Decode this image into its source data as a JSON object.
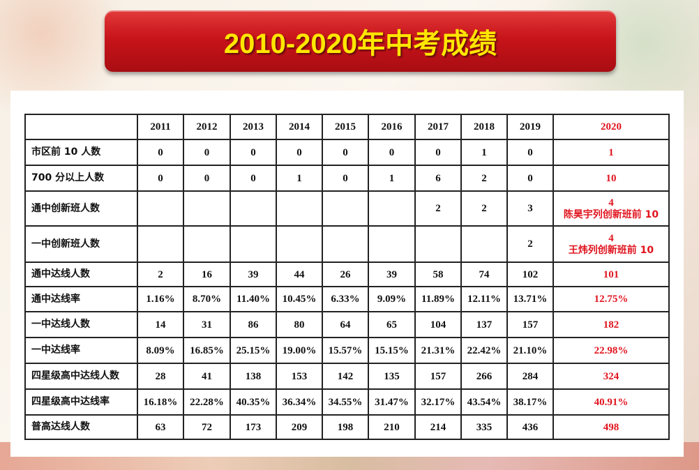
{
  "title": "2010-2020年中考成绩",
  "colors": {
    "banner": "#c8141a",
    "title_text": "#ffe600",
    "highlight": "#e0141e"
  },
  "table": {
    "headers": [
      "",
      "2011",
      "2012",
      "2013",
      "2014",
      "2015",
      "2016",
      "2017",
      "2018",
      "2019",
      "2020"
    ],
    "rows": [
      {
        "label": "市区前 10 人数",
        "values": [
          "0",
          "0",
          "0",
          "0",
          "0",
          "0",
          "0",
          "1",
          "0",
          "1"
        ]
      },
      {
        "label": "700 分以上人数",
        "values": [
          "0",
          "0",
          "0",
          "1",
          "0",
          "1",
          "6",
          "2",
          "0",
          "10"
        ]
      },
      {
        "label": "通中创新班人数",
        "values": [
          "",
          "",
          "",
          "",
          "",
          "",
          "2",
          "2",
          "3",
          "4"
        ],
        "note": "陈昊宇列创新班前 10"
      },
      {
        "label": "一中创新班人数",
        "values": [
          "",
          "",
          "",
          "",
          "",
          "",
          "",
          "",
          "2",
          "4"
        ],
        "note": "王炜列创新班前 10"
      },
      {
        "label": "通中达线人数",
        "values": [
          "2",
          "16",
          "39",
          "44",
          "26",
          "39",
          "58",
          "74",
          "102",
          "101"
        ]
      },
      {
        "label": "通中达线率",
        "values": [
          "1.16%",
          "8.70%",
          "11.40%",
          "10.45%",
          "6.33%",
          "9.09%",
          "11.89%",
          "12.11%",
          "13.71%",
          "12.75%"
        ]
      },
      {
        "label": "一中达线人数",
        "values": [
          "14",
          "31",
          "86",
          "80",
          "64",
          "65",
          "104",
          "137",
          "157",
          "182"
        ]
      },
      {
        "label": "一中达线率",
        "values": [
          "8.09%",
          "16.85%",
          "25.15%",
          "19.00%",
          "15.57%",
          "15.15%",
          "21.31%",
          "22.42%",
          "21.10%",
          "22.98%"
        ]
      },
      {
        "label": "四星级高中达线人数",
        "values": [
          "28",
          "41",
          "138",
          "153",
          "142",
          "135",
          "157",
          "266",
          "284",
          "324"
        ]
      },
      {
        "label": "四星级高中达线率",
        "values": [
          "16.18%",
          "22.28%",
          "40.35%",
          "36.34%",
          "34.55%",
          "31.47%",
          "32.17%",
          "43.54%",
          "38.17%",
          "40.91%"
        ]
      },
      {
        "label": "普高达线人数",
        "values": [
          "63",
          "72",
          "173",
          "209",
          "198",
          "210",
          "214",
          "335",
          "436",
          "498"
        ]
      }
    ]
  }
}
